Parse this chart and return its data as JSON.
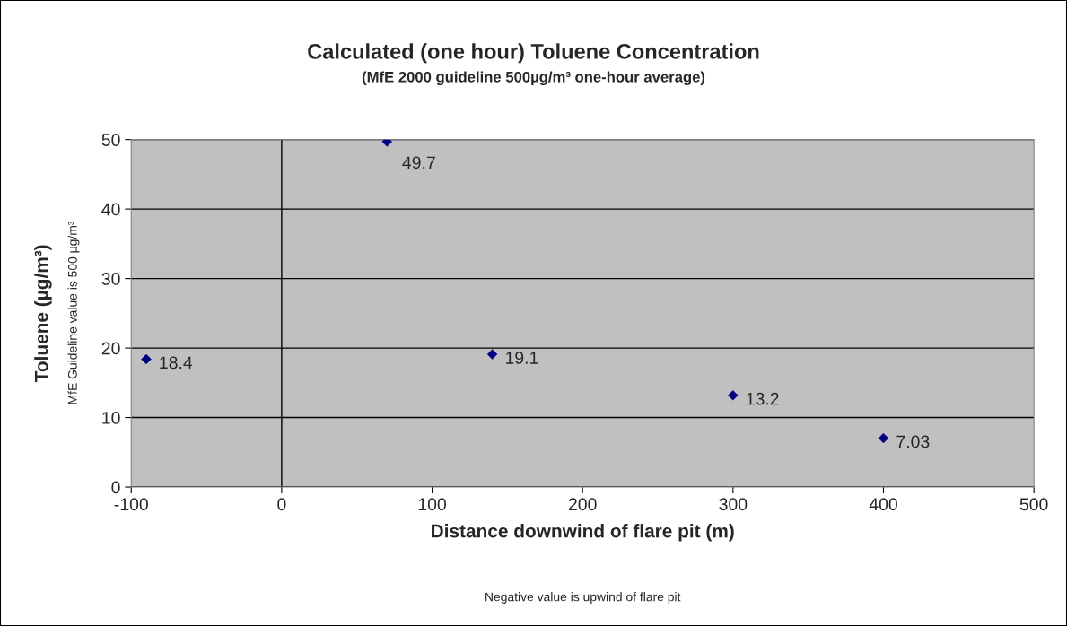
{
  "chart_data": {
    "type": "scatter",
    "title": "Calculated (one hour) Toluene Concentration",
    "subtitle": "(MfE 2000 guideline 500µg/m³ one-hour average)",
    "xlabel": "Distance downwind of flare pit (m)",
    "ylabel": "Toluene (µg/m³)",
    "annotations": [
      "MfE Guideline value is 500 µg/m³",
      "Negative value is upwind of flare pit"
    ],
    "x": [
      -90,
      70,
      140,
      300,
      400
    ],
    "series": [
      {
        "color": "#000080",
        "values": [
          18.4,
          49.7,
          19.1,
          13.2,
          7.03
        ]
      }
    ],
    "xlim": [
      -100,
      500
    ],
    "xticks": [
      -100,
      0,
      100,
      200,
      300,
      400,
      500
    ],
    "ylim": [
      0,
      50
    ],
    "yticks": [
      0,
      10,
      20,
      30,
      40,
      50
    ],
    "ref_lines": [
      {
        "axis": "x",
        "value": 0,
        "color": "#000000"
      }
    ],
    "grid": "y",
    "marker": "diamond",
    "data_labels": true,
    "legend": false
  }
}
